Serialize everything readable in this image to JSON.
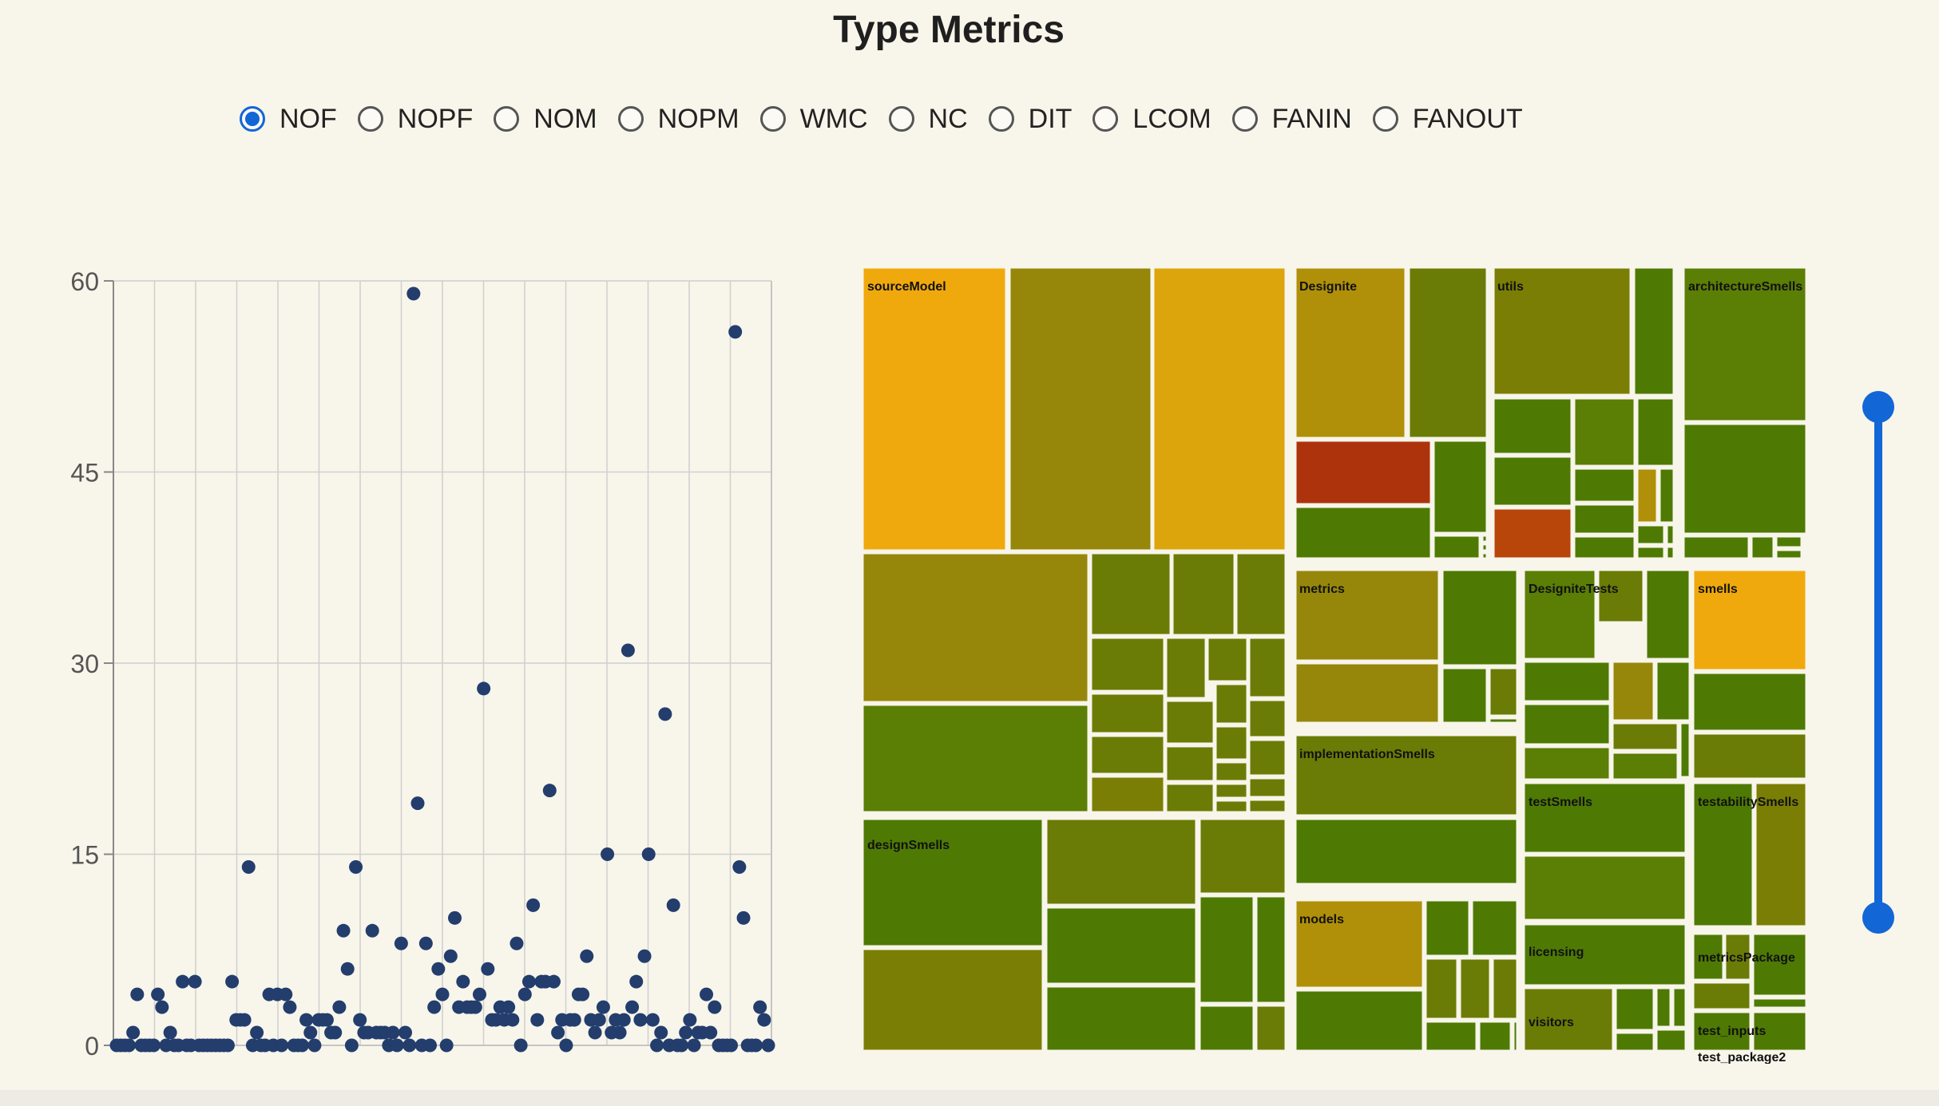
{
  "title": "Type Metrics",
  "metrics": [
    "NOF",
    "NOPF",
    "NOM",
    "NOPM",
    "WMC",
    "NC",
    "DIT",
    "LCOM",
    "FANIN",
    "FANOUT"
  ],
  "selected_metric": "NOF",
  "slider": {
    "low": 0,
    "high": 1
  },
  "colors": {
    "background": "#f8f5ea",
    "accent": "#1266d6",
    "dot": "#233d6d",
    "gold": "#f0a90c",
    "olive": "#96870b",
    "green": "#4e7a04",
    "red": "#ad330c"
  },
  "chart_data": [
    {
      "type": "scatter",
      "xlabel": "",
      "ylabel": "",
      "ylim": [
        0,
        60
      ],
      "yticks": [
        0,
        15,
        30,
        45,
        60
      ],
      "grid": true,
      "y": [
        0,
        0,
        0,
        0,
        1,
        4,
        0,
        0,
        0,
        0,
        4,
        3,
        0,
        1,
        0,
        0,
        5,
        0,
        0,
        5,
        0,
        0,
        0,
        0,
        0,
        0,
        0,
        0,
        5,
        2,
        2,
        2,
        14,
        0,
        1,
        0,
        0,
        4,
        0,
        4,
        0,
        4,
        3,
        0,
        0,
        0,
        2,
        1,
        0,
        2,
        2,
        2,
        1,
        1,
        3,
        9,
        6,
        0,
        14,
        2,
        1,
        1,
        9,
        1,
        1,
        1,
        0,
        1,
        0,
        8,
        1,
        0,
        59,
        19,
        0,
        8,
        0,
        3,
        6,
        4,
        0,
        7,
        10,
        3,
        5,
        3,
        3,
        3,
        4,
        28,
        6,
        2,
        2,
        3,
        2,
        3,
        2,
        8,
        0,
        4,
        5,
        11,
        2,
        5,
        5,
        20,
        5,
        1,
        2,
        0,
        2,
        2,
        4,
        4,
        7,
        2,
        1,
        2,
        3,
        15,
        1,
        2,
        1,
        2,
        31,
        3,
        5,
        2,
        7,
        15,
        2,
        0,
        1,
        26,
        0,
        11,
        0,
        0,
        1,
        2,
        0,
        1,
        1,
        4,
        1,
        3,
        0,
        0,
        0,
        0,
        56,
        14,
        10,
        0,
        0,
        0,
        3,
        2,
        0
      ]
    },
    {
      "type": "treemap",
      "groups": [
        "sourceModel",
        "Designite",
        "utils",
        "architectureSmells",
        "metrics",
        "DesigniteTests",
        "smells",
        "implementationSmells",
        "testSmells",
        "designSmells",
        "testabilitySmells",
        "models",
        "licensing",
        "visitors",
        "metricsPackage",
        "test_inputs",
        "test_package2"
      ]
    }
  ]
}
